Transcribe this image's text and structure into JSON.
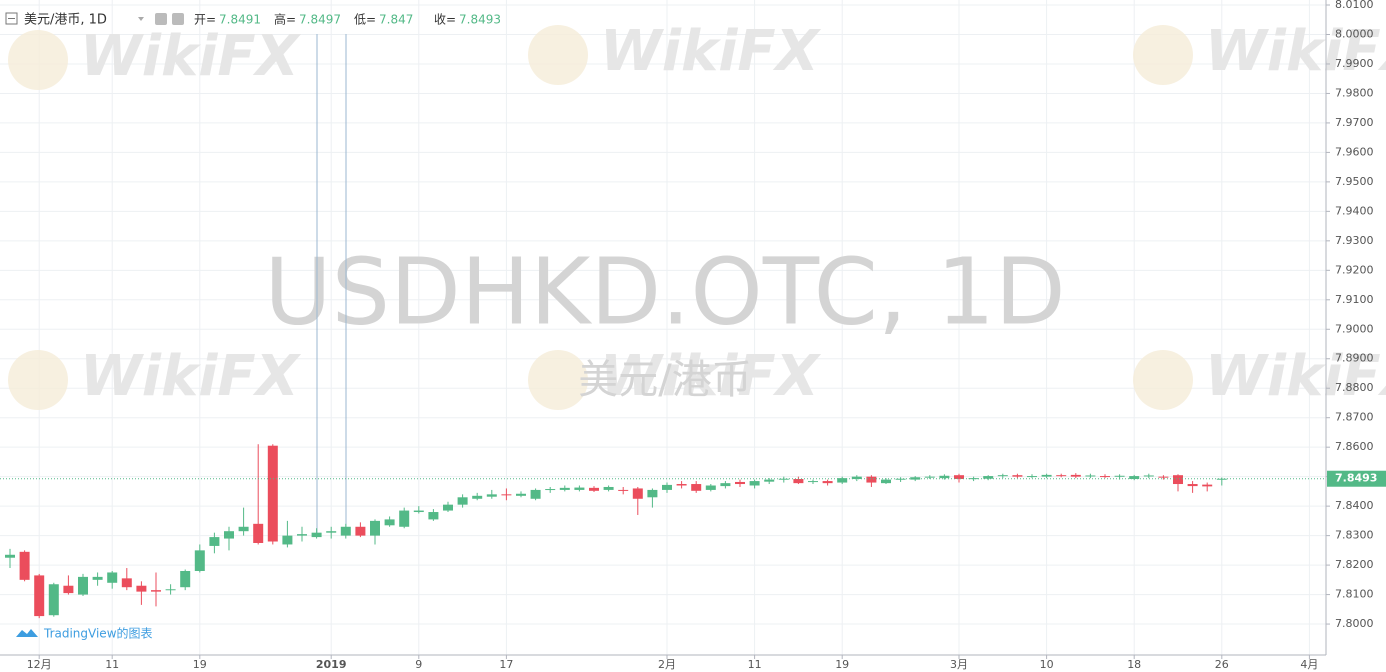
{
  "chart_data": {
    "type": "candlestick",
    "title": "美元/港币, 1D",
    "watermark": "USDHKD.OTC, 1D",
    "watermark_subtitle": "美元/港币",
    "brand": "WikiFX",
    "credit": "TradingView的图表",
    "ohlc_labels": [
      "开=",
      "高=",
      "低=",
      "收="
    ],
    "up_color": "#53b987",
    "down_color": "#eb4d5c",
    "categories": [
      null,
      null,
      "12月",
      null,
      null,
      null,
      null,
      "11",
      null,
      null,
      null,
      null,
      null,
      "19",
      null,
      null,
      null,
      null,
      null,
      null,
      null,
      null,
      "2019",
      null,
      null,
      null,
      null,
      null,
      "9",
      null,
      null,
      null,
      null,
      null,
      "17",
      null,
      null,
      null,
      null,
      null,
      null,
      null,
      null,
      null,
      null,
      "2月",
      null,
      null,
      null,
      null,
      null,
      "11",
      null,
      null,
      null,
      null,
      null,
      "19",
      null,
      null,
      null,
      null,
      null,
      null,
      null,
      "3月",
      null,
      null,
      null,
      null,
      null,
      "10",
      null,
      null,
      null,
      null,
      null,
      "18",
      null,
      null,
      null,
      null,
      null,
      "26",
      null,
      null,
      null,
      null,
      null,
      "4月"
    ],
    "open": [
      7.8225,
      7.8245,
      7.8165,
      7.803,
      7.813,
      7.81,
      7.815,
      7.814,
      7.8155,
      7.813,
      7.8115,
      7.8115,
      7.8125,
      7.818,
      7.8265,
      7.829,
      7.8315,
      7.834,
      7.8605,
      7.827,
      7.83,
      7.8295,
      7.831,
      7.83,
      7.833,
      7.83,
      7.8335,
      7.833,
      7.838,
      7.8355,
      7.8385,
      7.8405,
      7.8425,
      7.8432,
      7.844,
      7.8435,
      7.8425,
      7.8455,
      7.8455,
      7.8455,
      7.8462,
      7.8455,
      7.8455,
      7.846,
      7.843,
      7.8455,
      7.8475,
      7.8475,
      7.8455,
      7.8468,
      7.8482,
      7.847,
      7.8483,
      7.849,
      7.8492,
      7.8482,
      7.8485,
      7.848,
      7.8492,
      7.85,
      7.8478,
      7.849,
      7.849,
      7.8498,
      7.8495,
      7.8505,
      7.8492,
      7.8493,
      7.8502,
      7.8505,
      7.85,
      7.85,
      7.8505,
      7.8506,
      7.8502,
      7.8502,
      7.85,
      7.8492,
      7.8502,
      7.85,
      7.8505,
      7.8475,
      7.8473,
      7.8491,
      null,
      null,
      null,
      null,
      null,
      null
    ],
    "high": [
      7.8255,
      7.825,
      7.817,
      7.814,
      7.8165,
      7.817,
      7.8175,
      7.818,
      7.819,
      7.8145,
      7.8175,
      7.8135,
      7.8185,
      7.827,
      7.831,
      7.833,
      7.8395,
      7.861,
      7.861,
      7.835,
      7.833,
      7.8325,
      7.833,
      7.834,
      7.8345,
      7.8355,
      7.8365,
      7.8395,
      7.84,
      7.839,
      7.8415,
      7.844,
      7.8445,
      7.8455,
      7.846,
      7.845,
      7.846,
      7.8465,
      7.847,
      7.847,
      7.8468,
      7.847,
      7.8465,
      7.8465,
      7.846,
      7.848,
      7.8485,
      7.8485,
      7.8475,
      7.8485,
      7.849,
      7.849,
      7.8495,
      7.85,
      7.85,
      7.849,
      7.849,
      7.85,
      7.8505,
      7.8505,
      7.8495,
      7.8498,
      7.8502,
      7.8505,
      7.8508,
      7.851,
      7.85,
      7.8505,
      7.851,
      7.851,
      7.8508,
      7.851,
      7.851,
      7.8512,
      7.851,
      7.8508,
      7.8508,
      7.8506,
      7.851,
      7.8505,
      7.8508,
      7.8485,
      7.848,
      7.8497,
      null,
      null,
      null,
      null,
      null,
      null
    ],
    "low": [
      7.819,
      7.8145,
      7.802,
      7.8025,
      7.81,
      7.8095,
      7.813,
      7.812,
      7.8115,
      7.8065,
      7.806,
      7.81,
      7.8115,
      7.8175,
      7.824,
      7.825,
      7.83,
      7.827,
      7.827,
      7.826,
      7.828,
      7.829,
      7.829,
      7.829,
      7.8295,
      7.827,
      7.833,
      7.8325,
      7.8375,
      7.835,
      7.838,
      7.8395,
      7.842,
      7.8425,
      7.842,
      7.843,
      7.842,
      7.8445,
      7.845,
      7.845,
      7.8448,
      7.845,
      7.844,
      7.837,
      7.8395,
      7.8445,
      7.846,
      7.8445,
      7.845,
      7.846,
      7.8465,
      7.846,
      7.8475,
      7.848,
      7.8475,
      7.8475,
      7.847,
      7.8475,
      7.8485,
      7.8465,
      7.8475,
      7.8482,
      7.8485,
      7.8492,
      7.849,
      7.848,
      7.8485,
      7.8488,
      7.8495,
      7.8495,
      7.8495,
      7.8495,
      7.8498,
      7.8495,
      7.8495,
      7.8495,
      7.849,
      7.8488,
      7.8495,
      7.849,
      7.845,
      7.8445,
      7.845,
      7.847,
      null,
      null,
      null,
      null,
      null,
      null
    ],
    "close": [
      7.8235,
      7.815,
      7.8027,
      7.8135,
      7.8105,
      7.816,
      7.816,
      7.8175,
      7.8125,
      7.811,
      7.811,
      7.8118,
      7.818,
      7.825,
      7.8295,
      7.8315,
      7.833,
      7.8275,
      7.828,
      7.83,
      7.8305,
      7.831,
      7.8315,
      7.833,
      7.83,
      7.835,
      7.8355,
      7.8385,
      7.8385,
      7.838,
      7.8405,
      7.843,
      7.8435,
      7.844,
      7.8437,
      7.8442,
      7.8455,
      7.8458,
      7.8462,
      7.8463,
      7.8452,
      7.8465,
      7.8452,
      7.8425,
      7.8455,
      7.8472,
      7.847,
      7.8452,
      7.847,
      7.8478,
      7.8475,
      7.8485,
      7.849,
      7.8493,
      7.8478,
      7.8485,
      7.8478,
      7.8495,
      7.85,
      7.848,
      7.849,
      7.8493,
      7.8498,
      7.85,
      7.8503,
      7.8492,
      7.8495,
      7.8502,
      7.8505,
      7.85,
      7.8502,
      7.8506,
      7.8503,
      7.85,
      7.8504,
      7.85,
      7.8503,
      7.8502,
      7.8504,
      7.8497,
      7.8475,
      7.8468,
      7.8467,
      7.8493,
      null,
      null,
      null,
      null,
      null,
      null
    ],
    "ylim": [
      7.7895,
      8.0117
    ],
    "yticks": [
      {
        "value": 7.8,
        "label": "7.8000"
      },
      {
        "value": 7.81,
        "label": "7.8100"
      },
      {
        "value": 7.82,
        "label": "7.8200"
      },
      {
        "value": 7.83,
        "label": "7.8300"
      },
      {
        "value": 7.84,
        "label": "7.8400"
      },
      {
        "value": 7.85,
        "label": "7.8500"
      },
      {
        "value": 7.86,
        "label": "7.8600"
      },
      {
        "value": 7.87,
        "label": "7.8700"
      },
      {
        "value": 7.88,
        "label": "7.8800"
      },
      {
        "value": 7.89,
        "label": "7.8900"
      },
      {
        "value": 7.9,
        "label": "7.9000"
      },
      {
        "value": 7.91,
        "label": "7.9100"
      },
      {
        "value": 7.92,
        "label": "7.9200"
      },
      {
        "value": 7.93,
        "label": "7.9300"
      },
      {
        "value": 7.94,
        "label": "7.9400"
      },
      {
        "value": 7.95,
        "label": "7.9500"
      },
      {
        "value": 7.96,
        "label": "7.9600"
      },
      {
        "value": 7.97,
        "label": "7.9700"
      },
      {
        "value": 7.98,
        "label": "7.9800"
      },
      {
        "value": 7.99,
        "label": "7.9900"
      },
      {
        "value": 8.0,
        "label": "8.0000"
      },
      {
        "value": 8.01,
        "label": "8.0100"
      }
    ],
    "grid": true
  }
}
